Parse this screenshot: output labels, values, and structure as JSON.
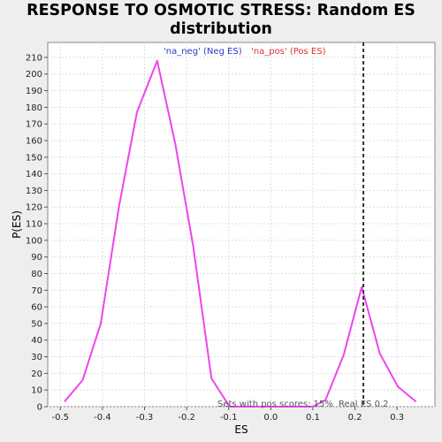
{
  "chart_data": {
    "type": "line",
    "title_line1": "RESPONSE TO OSMOTIC STRESS: Random ES",
    "title_line2": "distribution",
    "xlabel": "ES",
    "ylabel": "P(ES)",
    "xlim": [
      -0.53,
      0.39
    ],
    "ylim": [
      0,
      219
    ],
    "x_ticks": [
      -0.5,
      -0.4,
      -0.3,
      -0.2,
      -0.1,
      0.0,
      0.1,
      0.2,
      0.3
    ],
    "x_tick_labels": [
      "-0.5",
      "-0.4",
      "-0.3",
      "-0.2",
      "-0.1",
      "0.0",
      "0.1",
      "0.2",
      "0.3"
    ],
    "y_ticks": [
      0,
      10,
      20,
      30,
      40,
      50,
      60,
      70,
      80,
      90,
      100,
      110,
      120,
      130,
      140,
      150,
      160,
      170,
      180,
      190,
      200,
      210
    ],
    "grid": true,
    "series": [
      {
        "name": "'na_neg' (Neg ES)",
        "legend_color": "#3333cc",
        "color": "#ee44ee",
        "x": [
          -0.49,
          -0.447,
          -0.404,
          -0.361,
          -0.318,
          -0.27,
          -0.227,
          -0.184,
          -0.141,
          -0.098
        ],
        "y": [
          3,
          16,
          50,
          120,
          177,
          208,
          158,
          96,
          17,
          0
        ]
      },
      {
        "name": "'na_pos' (Pos ES)",
        "legend_color": "#dd3333",
        "color": "#ee44ee",
        "x": [
          -0.098,
          0.1,
          0.13,
          0.173,
          0.216,
          0.259,
          0.302,
          0.345
        ],
        "y": [
          0,
          0,
          4,
          31,
          72,
          32,
          12,
          3
        ]
      }
    ],
    "annotations": {
      "real_es_value": 0.22,
      "real_es_label": "Real ES 0.2",
      "sets_label": "Sets with pos scores: 15%"
    }
  }
}
